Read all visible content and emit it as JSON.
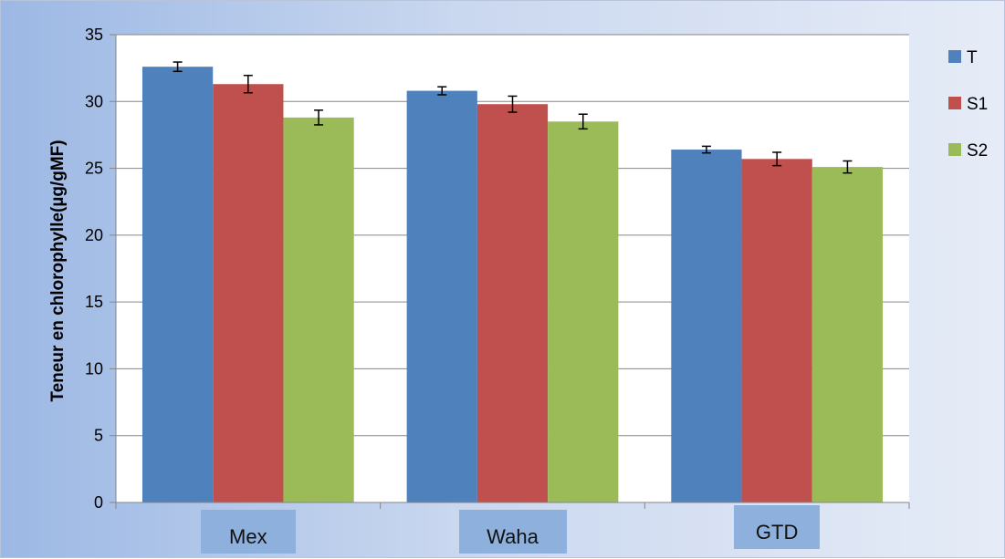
{
  "chart_data": {
    "type": "bar",
    "categories": [
      "Mex",
      "Waha",
      "GTD"
    ],
    "series": [
      {
        "name": "T",
        "color": "#4f81bd",
        "values": [
          32.6,
          30.8,
          26.4
        ],
        "errors": [
          0.35,
          0.3,
          0.25
        ]
      },
      {
        "name": "S1",
        "color": "#c0504d",
        "values": [
          31.3,
          29.8,
          25.7
        ],
        "errors": [
          0.65,
          0.6,
          0.5
        ]
      },
      {
        "name": "S2",
        "color": "#9bbb59",
        "values": [
          28.8,
          28.5,
          25.1
        ],
        "errors": [
          0.55,
          0.55,
          0.45
        ]
      }
    ],
    "title": "",
    "xlabel": "",
    "ylabel": "Teneur en chlorophylle(µg/gMF)",
    "ylim": [
      0,
      35
    ],
    "yticks": [
      0,
      5,
      10,
      15,
      20,
      25,
      30,
      35
    ],
    "grid": true,
    "legend_position": "right",
    "error_bars": true
  }
}
